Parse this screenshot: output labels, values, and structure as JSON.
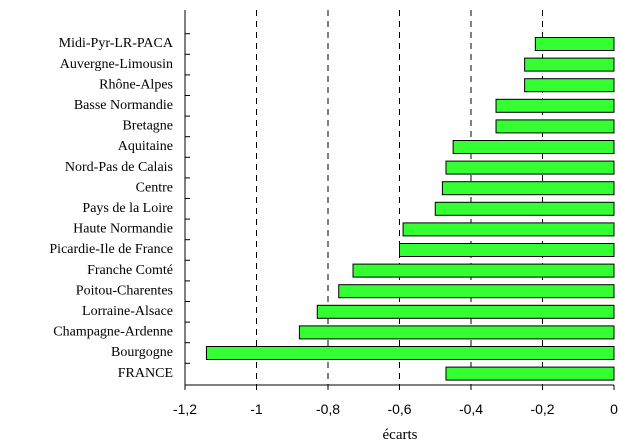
{
  "chart_data": {
    "type": "bar",
    "orientation": "horizontal",
    "x_label": "écarts",
    "categories": [
      "Midi-Pyr-LR-PACA",
      "Auvergne-Limousin",
      "Rhône-Alpes",
      "Basse Normandie",
      "Bretagne",
      "Aquitaine",
      "Nord-Pas de Calais",
      "Centre",
      "Pays de la Loire",
      "Haute Normandie",
      "Picardie-Ile de France",
      "Franche Comté",
      "Poitou-Charentes",
      "Lorraine-Alsace",
      "Champagne-Ardenne",
      "Bourgogne",
      "FRANCE"
    ],
    "values": [
      -0.22,
      -0.25,
      -0.25,
      -0.33,
      -0.33,
      -0.45,
      -0.47,
      -0.48,
      -0.5,
      -0.59,
      -0.6,
      -0.73,
      -0.77,
      -0.83,
      -0.88,
      -1.14,
      -0.47
    ],
    "color": "#33ff33",
    "xlim": [
      -1.2,
      0
    ],
    "xticks": [
      {
        "value": -1.2,
        "label": "-1,2"
      },
      -1,
      {
        "value": -0.8,
        "label": "-0,8"
      },
      {
        "value": -0.6,
        "label": "-0,6"
      },
      {
        "value": -0.4,
        "label": "-0,4"
      },
      {
        "value": -0.2,
        "label": "-0,2"
      },
      0
    ],
    "grid": true
  }
}
